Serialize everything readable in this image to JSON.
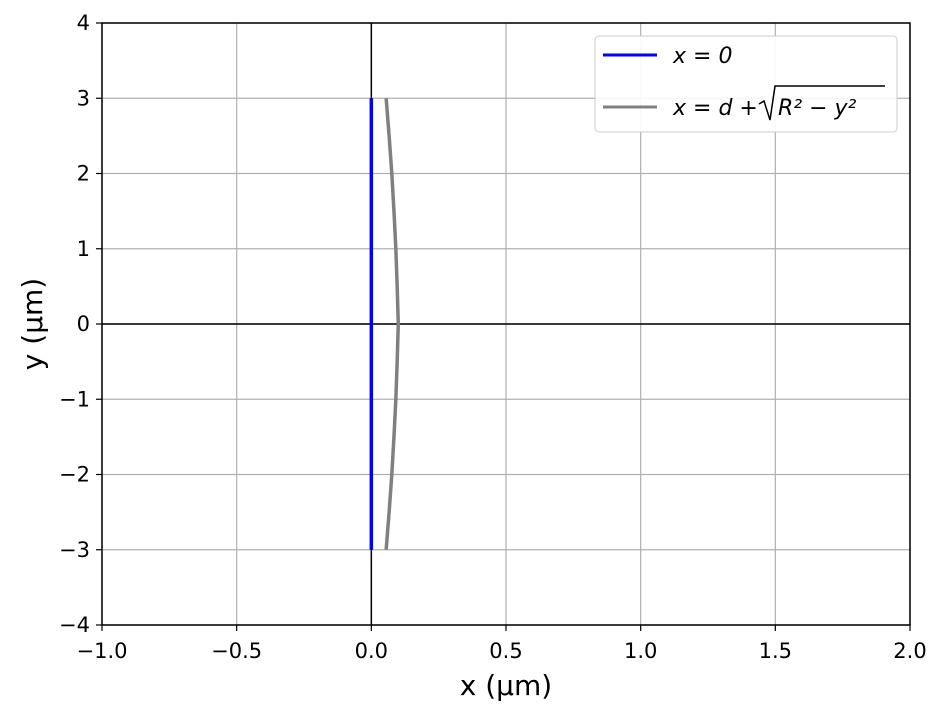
{
  "chart_data": {
    "type": "line",
    "title": "",
    "xlabel": "x (µm)",
    "ylabel": "y (µm)",
    "xlim": [
      -1.0,
      2.0
    ],
    "ylim": [
      -4,
      4
    ],
    "xticks": [
      -1.0,
      -0.5,
      0.0,
      0.5,
      1.0,
      1.5,
      2.0
    ],
    "xtick_labels": [
      "−1.0",
      "−0.5",
      "0.0",
      "0.5",
      "1.0",
      "1.5",
      "2.0"
    ],
    "yticks": [
      -4,
      -3,
      -2,
      -1,
      0,
      1,
      2,
      3,
      4
    ],
    "ytick_labels": [
      "−4",
      "−3",
      "−2",
      "−1",
      "0",
      "1",
      "2",
      "3",
      "4"
    ],
    "grid": true,
    "zero_lines": true,
    "legend_position": "top-right",
    "series": [
      {
        "name": "x = 0",
        "color": "#0000ff",
        "points": [
          [
            0.0,
            -3.0
          ],
          [
            0.0,
            3.0
          ]
        ]
      },
      {
        "name": "x = d + √(R² − y²)",
        "color": "#808080",
        "points": [
          [
            0.055,
            -3.0
          ],
          [
            0.066,
            -2.5
          ],
          [
            0.076,
            -2.0
          ],
          [
            0.084,
            -1.5
          ],
          [
            0.091,
            -1.0
          ],
          [
            0.096,
            -0.5
          ],
          [
            0.1,
            0.0
          ],
          [
            0.096,
            0.5
          ],
          [
            0.091,
            1.0
          ],
          [
            0.084,
            1.5
          ],
          [
            0.076,
            2.0
          ],
          [
            0.066,
            2.5
          ],
          [
            0.055,
            3.0
          ]
        ]
      }
    ]
  },
  "legend": {
    "series0_label": "x = 0",
    "series1_prefix": "x = d + ",
    "series1_radicand": "R² − y²"
  }
}
